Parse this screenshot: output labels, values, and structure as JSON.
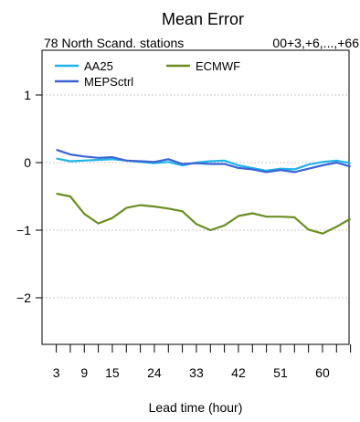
{
  "chart_data": {
    "type": "line",
    "title": "Mean Error",
    "subtitle_left": "78 North Scand. stations",
    "subtitle_right": "00+3,+6,...,+66",
    "xlabel": "Lead time (hour)",
    "ylabel": "",
    "x": [
      3,
      6,
      9,
      12,
      15,
      18,
      21,
      24,
      27,
      30,
      33,
      36,
      39,
      42,
      45,
      48,
      51,
      54,
      57,
      60,
      63,
      66
    ],
    "xticks": [
      3,
      9,
      15,
      24,
      33,
      42,
      51,
      60
    ],
    "xlim": [
      1,
      68
    ],
    "yticks": [
      1,
      0,
      -1,
      -2
    ],
    "ytick_labels": [
      "1",
      "0",
      "−1",
      "−2"
    ],
    "ylim": [
      -2.7,
      1.35
    ],
    "grid": true,
    "legend_placement": "top",
    "series": [
      {
        "name": "AA25",
        "color": "#1fb4e8",
        "values": [
          0.06,
          0.02,
          0.03,
          0.04,
          0.05,
          0.03,
          0.01,
          -0.01,
          0.01,
          -0.04,
          0.0,
          0.02,
          0.03,
          -0.04,
          -0.08,
          -0.12,
          -0.09,
          -0.1,
          -0.03,
          0.01,
          0.03,
          -0.01
        ]
      },
      {
        "name": "MEPSctrl",
        "color": "#3b63d4",
        "values": [
          0.19,
          0.12,
          0.09,
          0.07,
          0.08,
          0.03,
          0.02,
          0.01,
          0.05,
          -0.02,
          -0.01,
          -0.02,
          -0.02,
          -0.08,
          -0.1,
          -0.14,
          -0.11,
          -0.14,
          -0.09,
          -0.04,
          0.0,
          -0.06
        ]
      },
      {
        "name": "ECMWF",
        "color": "#6b8e23",
        "values": [
          -0.46,
          -0.5,
          -0.76,
          -0.9,
          -0.82,
          -0.67,
          -0.63,
          -0.65,
          -0.68,
          -0.72,
          -0.91,
          -1.0,
          -0.93,
          -0.79,
          -0.75,
          -0.8,
          -0.8,
          -0.81,
          -0.99,
          -1.05,
          -0.95,
          -0.83
        ]
      }
    ]
  }
}
